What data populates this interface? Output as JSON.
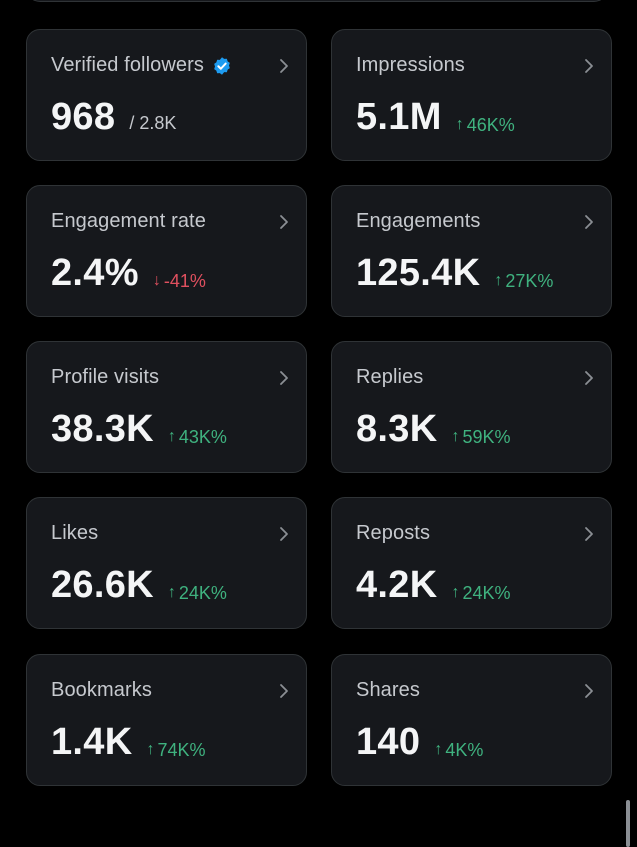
{
  "colors": {
    "background": "#000000",
    "card": "#16181c",
    "border": "#2f3336",
    "up": "#3fb27f",
    "down": "#e0505f",
    "verified": "#1d9bf0"
  },
  "cards": [
    {
      "label": "Verified followers",
      "value": "968",
      "sub": "/ 2.8K",
      "verified_icon": "verified-badge-icon"
    },
    {
      "label": "Impressions",
      "value": "5.1M",
      "change_arrow": "↑",
      "change": "46K%",
      "direction": "up"
    },
    {
      "label": "Engagement rate",
      "value": "2.4%",
      "change_arrow": "↓",
      "change": "-41%",
      "direction": "down"
    },
    {
      "label": "Engagements",
      "value": "125.4K",
      "change_arrow": "↑",
      "change": "27K%",
      "direction": "up"
    },
    {
      "label": "Profile visits",
      "value": "38.3K",
      "change_arrow": "↑",
      "change": "43K%",
      "direction": "up"
    },
    {
      "label": "Replies",
      "value": "8.3K",
      "change_arrow": "↑",
      "change": "59K%",
      "direction": "up"
    },
    {
      "label": "Likes",
      "value": "26.6K",
      "change_arrow": "↑",
      "change": "24K%",
      "direction": "up"
    },
    {
      "label": "Reposts",
      "value": "4.2K",
      "change_arrow": "↑",
      "change": "24K%",
      "direction": "up"
    },
    {
      "label": "Bookmarks",
      "value": "1.4K",
      "change_arrow": "↑",
      "change": "74K%",
      "direction": "up"
    },
    {
      "label": "Shares",
      "value": "140",
      "change_arrow": "↑",
      "change": "4K%",
      "direction": "up"
    }
  ]
}
